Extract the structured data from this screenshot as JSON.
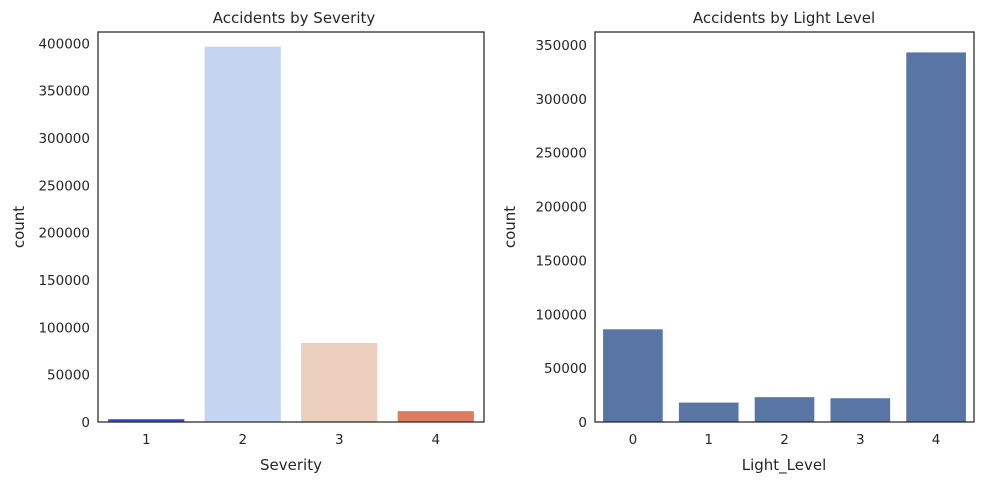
{
  "chart_data": [
    {
      "type": "bar",
      "title": "Accidents by Severity",
      "xlabel": "Severity",
      "ylabel": "count",
      "categories": [
        "1",
        "2",
        "3",
        "4"
      ],
      "values": [
        3500,
        397000,
        84000,
        12000
      ],
      "colors": [
        "#3b4cc0",
        "#c5d5f1",
        "#ebcebd",
        "#dd7b61"
      ],
      "ylim": [
        0,
        412000
      ],
      "yticks": [
        0,
        50000,
        100000,
        150000,
        200000,
        250000,
        300000,
        350000,
        400000
      ],
      "ytick_labels": [
        "0",
        "50000",
        "100000",
        "150000",
        "200000",
        "250000",
        "300000",
        "350000",
        "400000"
      ],
      "grid": false
    },
    {
      "type": "bar",
      "title": "Accidents by Light Level",
      "xlabel": "Light_Level",
      "ylabel": "count",
      "categories": [
        "0",
        "1",
        "2",
        "3",
        "4"
      ],
      "values": [
        86500,
        18500,
        23500,
        22500,
        343500
      ],
      "colors": [
        "#5875a4",
        "#5875a4",
        "#5875a4",
        "#5875a4",
        "#5875a4"
      ],
      "ylim": [
        0,
        362000
      ],
      "yticks": [
        0,
        50000,
        100000,
        150000,
        200000,
        250000,
        300000,
        350000
      ],
      "ytick_labels": [
        "0",
        "50000",
        "100000",
        "150000",
        "200000",
        "250000",
        "300000",
        "350000"
      ],
      "grid": false
    }
  ]
}
